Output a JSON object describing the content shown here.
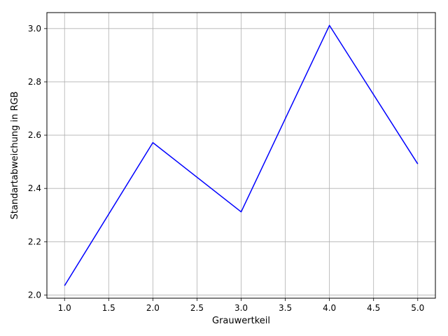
{
  "chart_data": {
    "type": "line",
    "title": "",
    "xlabel": "Grauwertkeil",
    "ylabel": "Standartabweichung in RGB",
    "x": [
      1.0,
      2.0,
      3.0,
      4.0,
      5.0
    ],
    "series": [
      {
        "values": [
          2.035,
          2.572,
          2.312,
          3.012,
          2.492
        ],
        "color": "#0000ff"
      }
    ],
    "xlim": [
      0.8,
      5.2
    ],
    "ylim": [
      1.988,
      3.06
    ],
    "xticks": [
      "1.0",
      "1.5",
      "2.0",
      "2.5",
      "3.0",
      "3.5",
      "4.0",
      "4.5",
      "5.0"
    ],
    "yticks": [
      "2.0",
      "2.2",
      "2.4",
      "2.6",
      "2.8",
      "3.0"
    ],
    "grid": true,
    "legend": "none",
    "grid_color": "#b0b0b0",
    "axis_color": "#000000"
  }
}
